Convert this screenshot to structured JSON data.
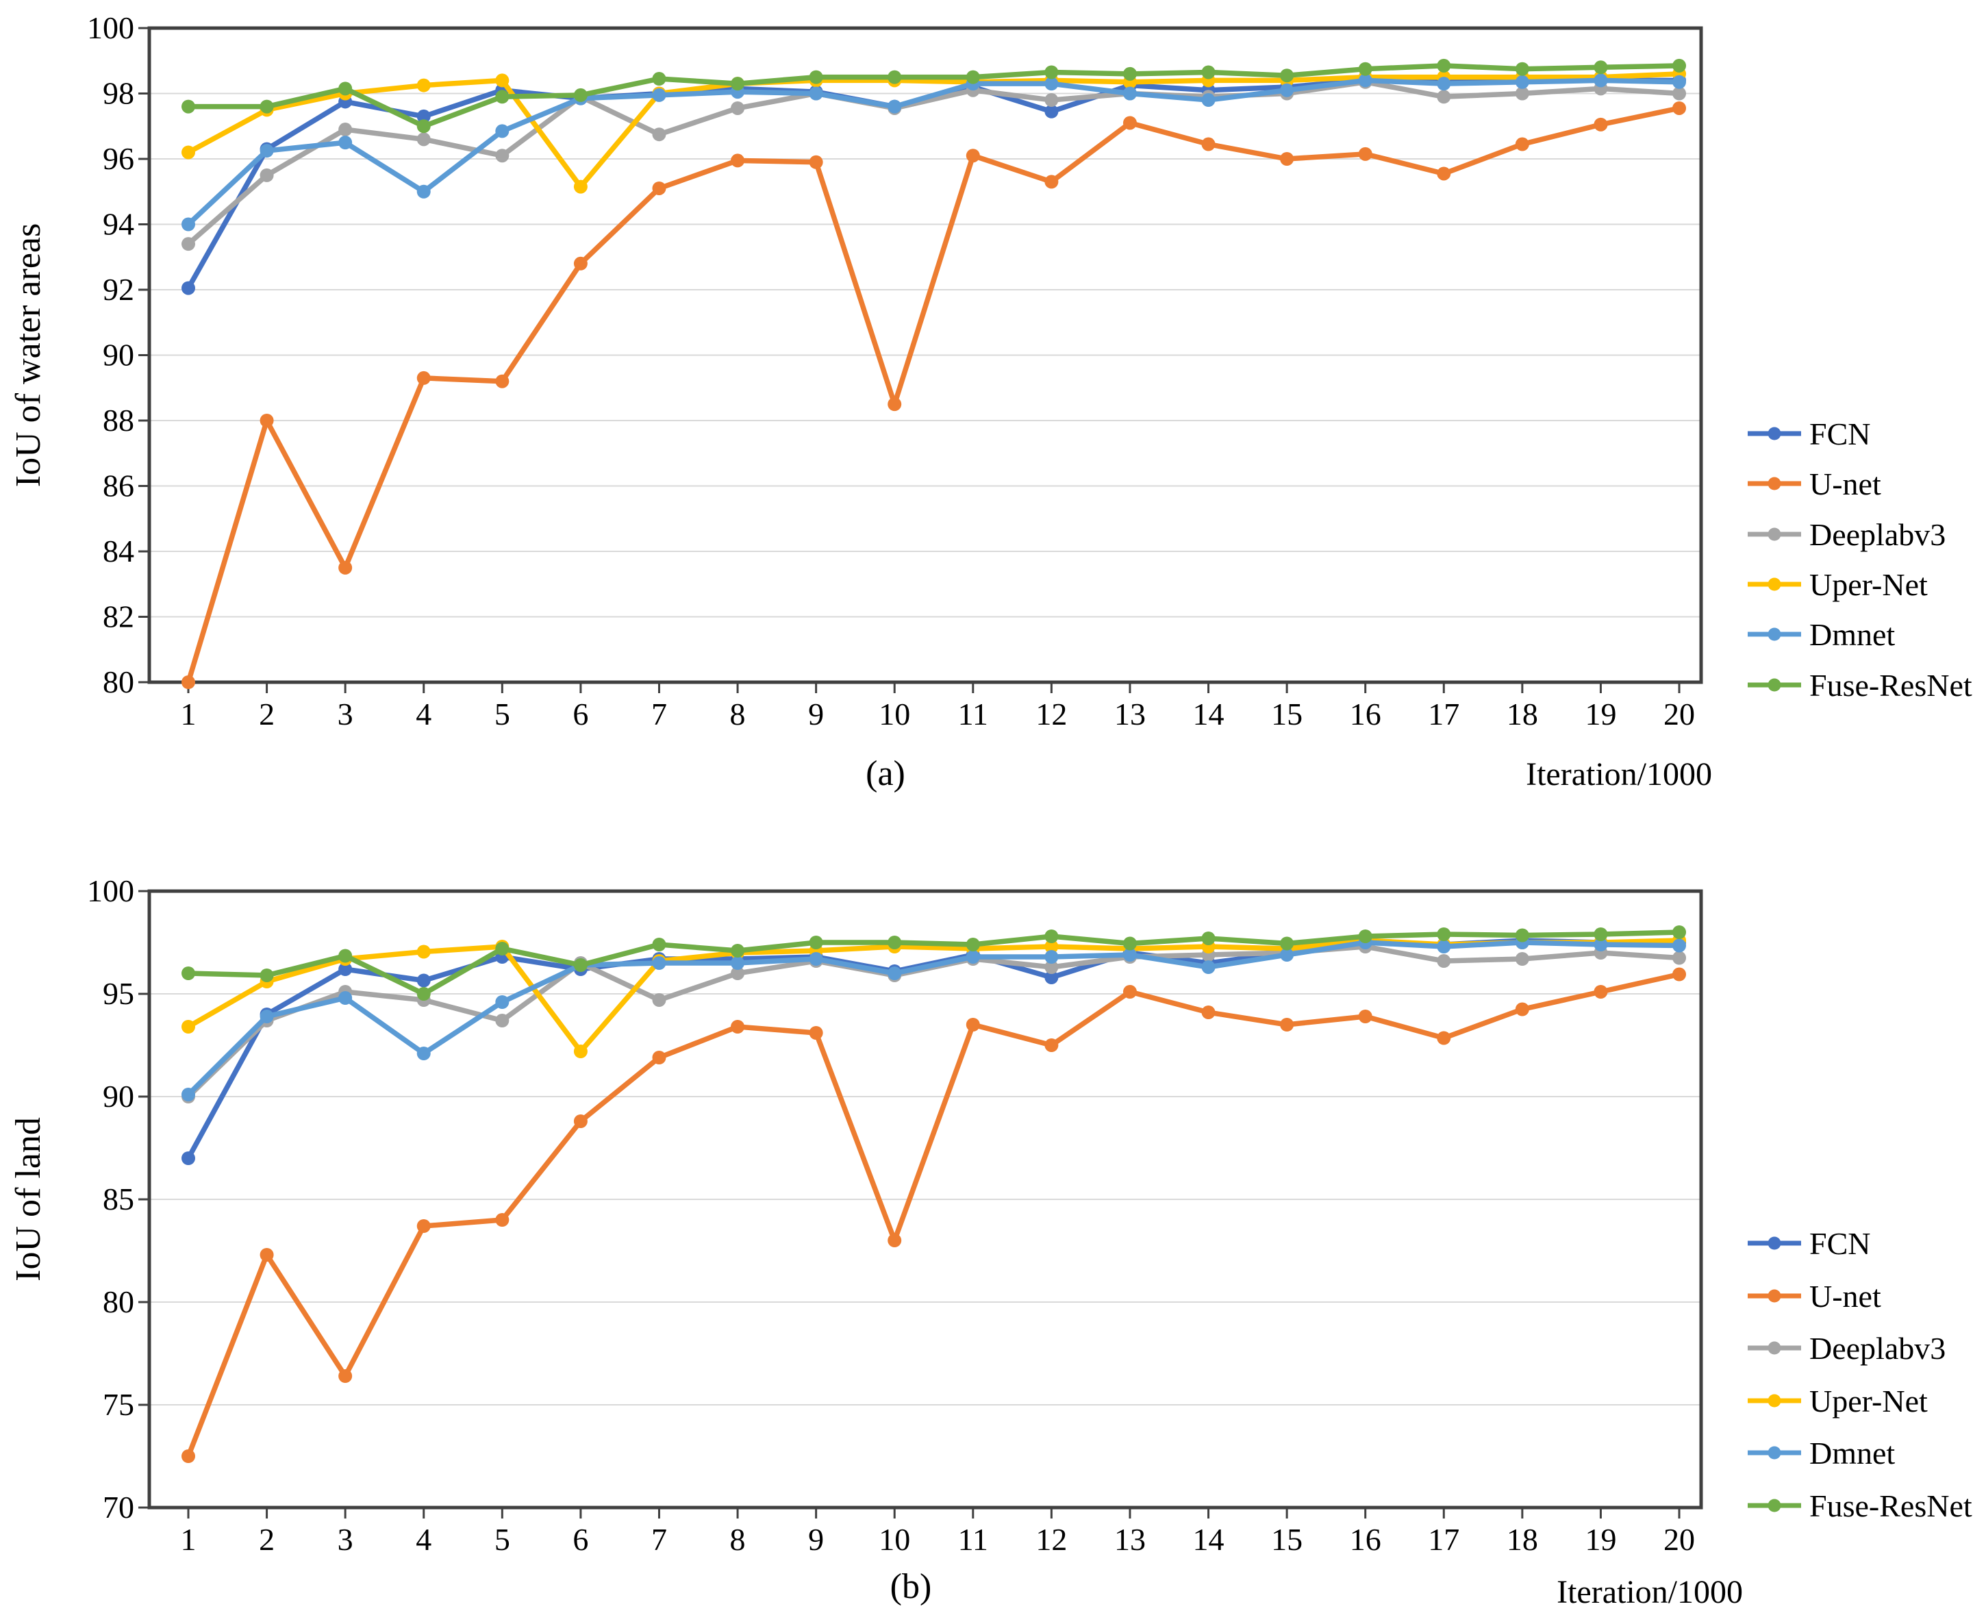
{
  "figure": {
    "background": "#FFFFFF",
    "panel_a_label": "(a)",
    "panel_b_label": "(b)"
  },
  "palette": {
    "fcn": "#4472C4",
    "unet": "#ED7D31",
    "deeplabv3": "#A5A5A5",
    "upernet": "#FFC000",
    "dmnet": "#5B9BD5",
    "fuseresnet": "#70AD47",
    "gridline": "#D9D9D9",
    "axis": "#404040",
    "text": "#000000"
  },
  "chart_data": [
    {
      "id": "a",
      "type": "line",
      "panel_label": "(a)",
      "ylabel": "IoU of water areas",
      "xlabel": "Iteration/1000",
      "x": [
        1,
        2,
        3,
        4,
        5,
        6,
        7,
        8,
        9,
        10,
        11,
        12,
        13,
        14,
        15,
        16,
        17,
        18,
        19,
        20
      ],
      "ylim": [
        80,
        100
      ],
      "yticks": [
        80,
        82,
        84,
        86,
        88,
        90,
        92,
        94,
        96,
        98,
        100
      ],
      "grid": "horizontal",
      "legend_position": "right",
      "legend": [
        "FCN",
        "U-net",
        "Deeplabv3",
        "Uper-Net",
        "Dmnet",
        "Fuse-ResNet"
      ],
      "series": [
        {
          "name": "FCN",
          "color": "#4472C4",
          "values": [
            92.05,
            96.3,
            97.75,
            97.3,
            98.1,
            97.85,
            98.0,
            98.15,
            98.05,
            97.6,
            98.2,
            97.45,
            98.25,
            98.1,
            98.2,
            98.4,
            98.45,
            98.45,
            98.4,
            98.4
          ]
        },
        {
          "name": "U-net",
          "color": "#ED7D31",
          "values": [
            80.0,
            88.0,
            83.5,
            89.3,
            89.2,
            92.8,
            95.1,
            95.95,
            95.9,
            88.5,
            96.1,
            95.3,
            97.1,
            96.45,
            96.0,
            96.15,
            95.55,
            96.45,
            97.05,
            97.55
          ]
        },
        {
          "name": "Deeplabv3",
          "color": "#A5A5A5",
          "values": [
            93.4,
            95.5,
            96.9,
            96.6,
            96.1,
            97.9,
            96.75,
            97.55,
            98.0,
            97.55,
            98.1,
            97.8,
            98.0,
            97.9,
            98.0,
            98.35,
            97.9,
            98.0,
            98.15,
            98.0
          ]
        },
        {
          "name": "Uper-Net",
          "color": "#FFC000",
          "values": [
            96.2,
            97.5,
            98.0,
            98.25,
            98.4,
            95.15,
            98.0,
            98.3,
            98.4,
            98.4,
            98.35,
            98.4,
            98.35,
            98.4,
            98.4,
            98.5,
            98.5,
            98.5,
            98.5,
            98.6
          ]
        },
        {
          "name": "Dmnet",
          "color": "#5B9BD5",
          "values": [
            94.0,
            96.25,
            96.5,
            95.0,
            96.85,
            97.85,
            97.95,
            98.05,
            98.0,
            97.6,
            98.3,
            98.3,
            98.0,
            97.8,
            98.1,
            98.4,
            98.3,
            98.35,
            98.4,
            98.35
          ]
        },
        {
          "name": "Fuse-ResNet",
          "color": "#70AD47",
          "values": [
            97.6,
            97.6,
            98.15,
            97.0,
            97.9,
            97.95,
            98.45,
            98.3,
            98.5,
            98.5,
            98.5,
            98.65,
            98.6,
            98.65,
            98.55,
            98.75,
            98.85,
            98.75,
            98.8,
            98.85
          ]
        }
      ]
    },
    {
      "id": "b",
      "type": "line",
      "panel_label": "(b)",
      "ylabel": "IoU of land",
      "xlabel": "Iteration/1000",
      "x": [
        1,
        2,
        3,
        4,
        5,
        6,
        7,
        8,
        9,
        10,
        11,
        12,
        13,
        14,
        15,
        16,
        17,
        18,
        19,
        20
      ],
      "ylim": [
        70,
        100
      ],
      "yticks": [
        70,
        75,
        80,
        85,
        90,
        95,
        100
      ],
      "grid": "horizontal",
      "legend_position": "right",
      "legend": [
        "FCN",
        "U-net",
        "Deeplabv3",
        "Uper-Net",
        "Dmnet",
        "Fuse-ResNet"
      ],
      "series": [
        {
          "name": "FCN",
          "color": "#4472C4",
          "values": [
            87.0,
            94.0,
            96.2,
            95.65,
            96.8,
            96.2,
            96.7,
            96.7,
            96.8,
            96.1,
            96.9,
            95.8,
            97.0,
            96.5,
            97.0,
            97.5,
            97.4,
            97.6,
            97.5,
            97.5
          ]
        },
        {
          "name": "U-net",
          "color": "#ED7D31",
          "values": [
            72.5,
            82.3,
            76.4,
            83.7,
            84.0,
            88.8,
            91.9,
            93.4,
            93.1,
            83.0,
            93.5,
            92.5,
            95.1,
            94.1,
            93.5,
            93.9,
            92.85,
            94.25,
            95.1,
            95.95
          ]
        },
        {
          "name": "Deeplabv3",
          "color": "#A5A5A5",
          "values": [
            90.0,
            93.7,
            95.1,
            94.7,
            93.7,
            96.5,
            94.7,
            96.0,
            96.6,
            95.9,
            96.7,
            96.3,
            96.8,
            96.9,
            97.0,
            97.3,
            96.6,
            96.7,
            97.0,
            96.75
          ]
        },
        {
          "name": "Uper-Net",
          "color": "#FFC000",
          "values": [
            93.4,
            95.6,
            96.7,
            97.05,
            97.3,
            92.2,
            96.6,
            97.0,
            97.1,
            97.3,
            97.2,
            97.3,
            97.2,
            97.3,
            97.2,
            97.6,
            97.4,
            97.5,
            97.5,
            97.6
          ]
        },
        {
          "name": "Dmnet",
          "color": "#5B9BD5",
          "values": [
            90.1,
            93.9,
            94.8,
            92.1,
            94.6,
            96.4,
            96.5,
            96.5,
            96.7,
            96.0,
            96.8,
            96.8,
            96.9,
            96.3,
            96.9,
            97.5,
            97.3,
            97.5,
            97.4,
            97.35
          ]
        },
        {
          "name": "Fuse-ResNet",
          "color": "#70AD47",
          "values": [
            96.0,
            95.9,
            96.85,
            95.0,
            97.2,
            96.4,
            97.4,
            97.1,
            97.5,
            97.5,
            97.4,
            97.8,
            97.45,
            97.7,
            97.45,
            97.8,
            97.9,
            97.85,
            97.9,
            98.0
          ]
        }
      ]
    }
  ]
}
